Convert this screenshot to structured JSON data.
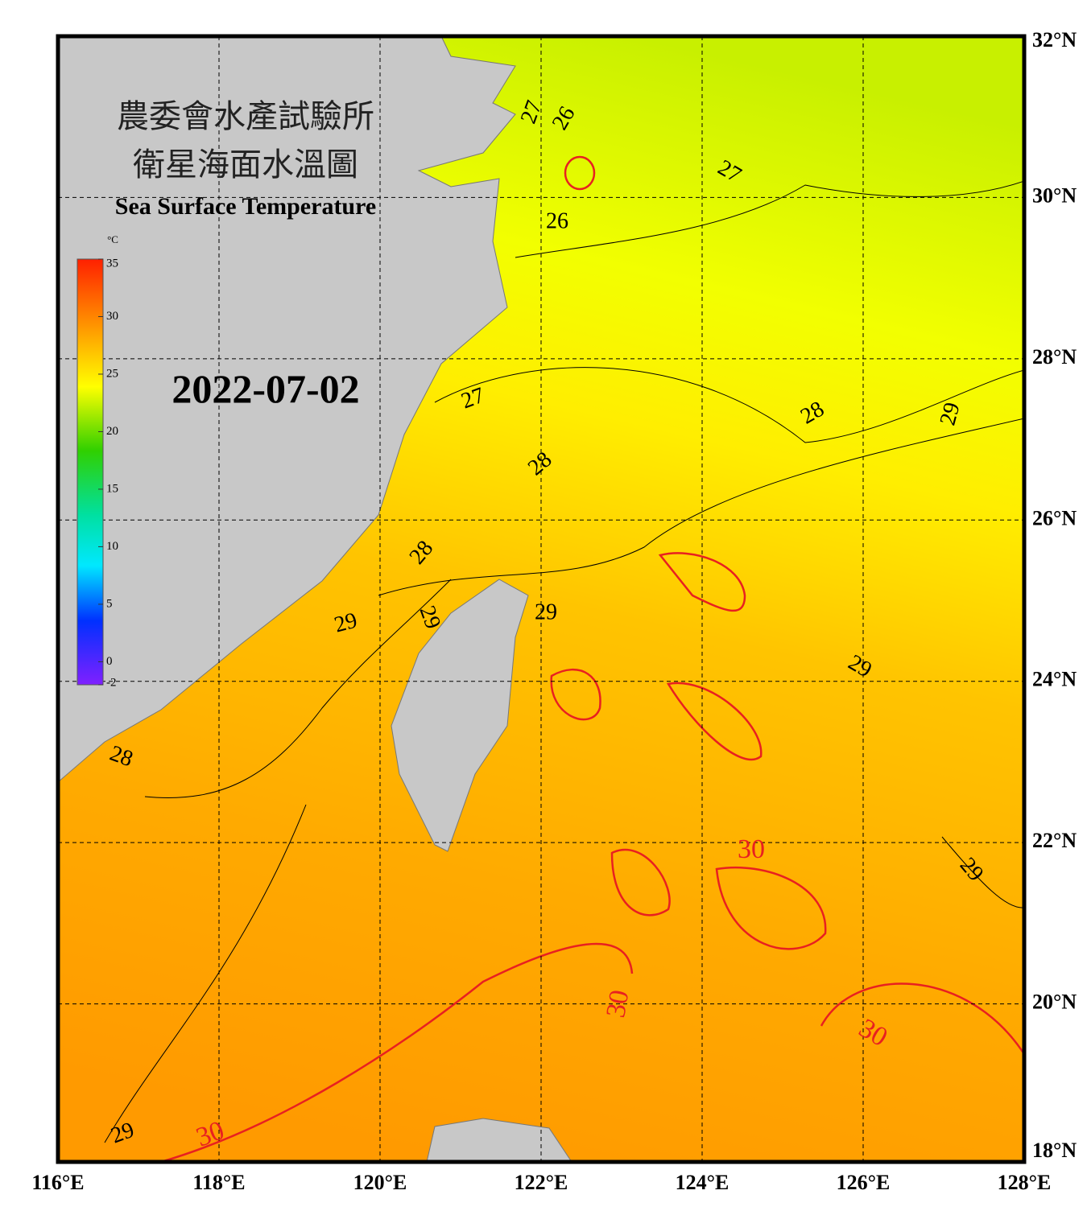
{
  "map": {
    "title_lines": [
      "農委會水產試驗所",
      "衛星海面水溫圖"
    ],
    "subtitle": "Sea Surface Temperature",
    "date": "2022-07-02",
    "lon_range": [
      116,
      128
    ],
    "lat_range": [
      18,
      32
    ],
    "lon_ticks": [
      {
        "value": 116,
        "label": "116°E"
      },
      {
        "value": 118,
        "label": "118°E"
      },
      {
        "value": 120,
        "label": "120°E"
      },
      {
        "value": 122,
        "label": "122°E"
      },
      {
        "value": 124,
        "label": "124°E"
      },
      {
        "value": 126,
        "label": "126°E"
      },
      {
        "value": 128,
        "label": "128°E"
      }
    ],
    "lat_ticks": [
      {
        "value": 18,
        "label": "18°N"
      },
      {
        "value": 20,
        "label": "20°N"
      },
      {
        "value": 22,
        "label": "22°N"
      },
      {
        "value": 24,
        "label": "24°N"
      },
      {
        "value": 26,
        "label": "26°N"
      },
      {
        "value": 28,
        "label": "28°N"
      },
      {
        "value": 30,
        "label": "30°N"
      },
      {
        "value": 32,
        "label": "32°N"
      }
    ],
    "colorbar": {
      "unit": "°C",
      "range": [
        -2,
        35
      ],
      "ticks": [
        35,
        30,
        25,
        20,
        15,
        10,
        5,
        0,
        -2
      ]
    },
    "contour_labels": [
      27,
      26,
      27,
      26,
      27,
      28,
      29,
      28,
      28,
      29,
      29,
      29,
      29,
      28,
      29,
      30,
      30,
      30,
      29,
      30
    ],
    "contour_colors": {
      "30": "#e82020",
      "default": "#000000"
    }
  }
}
